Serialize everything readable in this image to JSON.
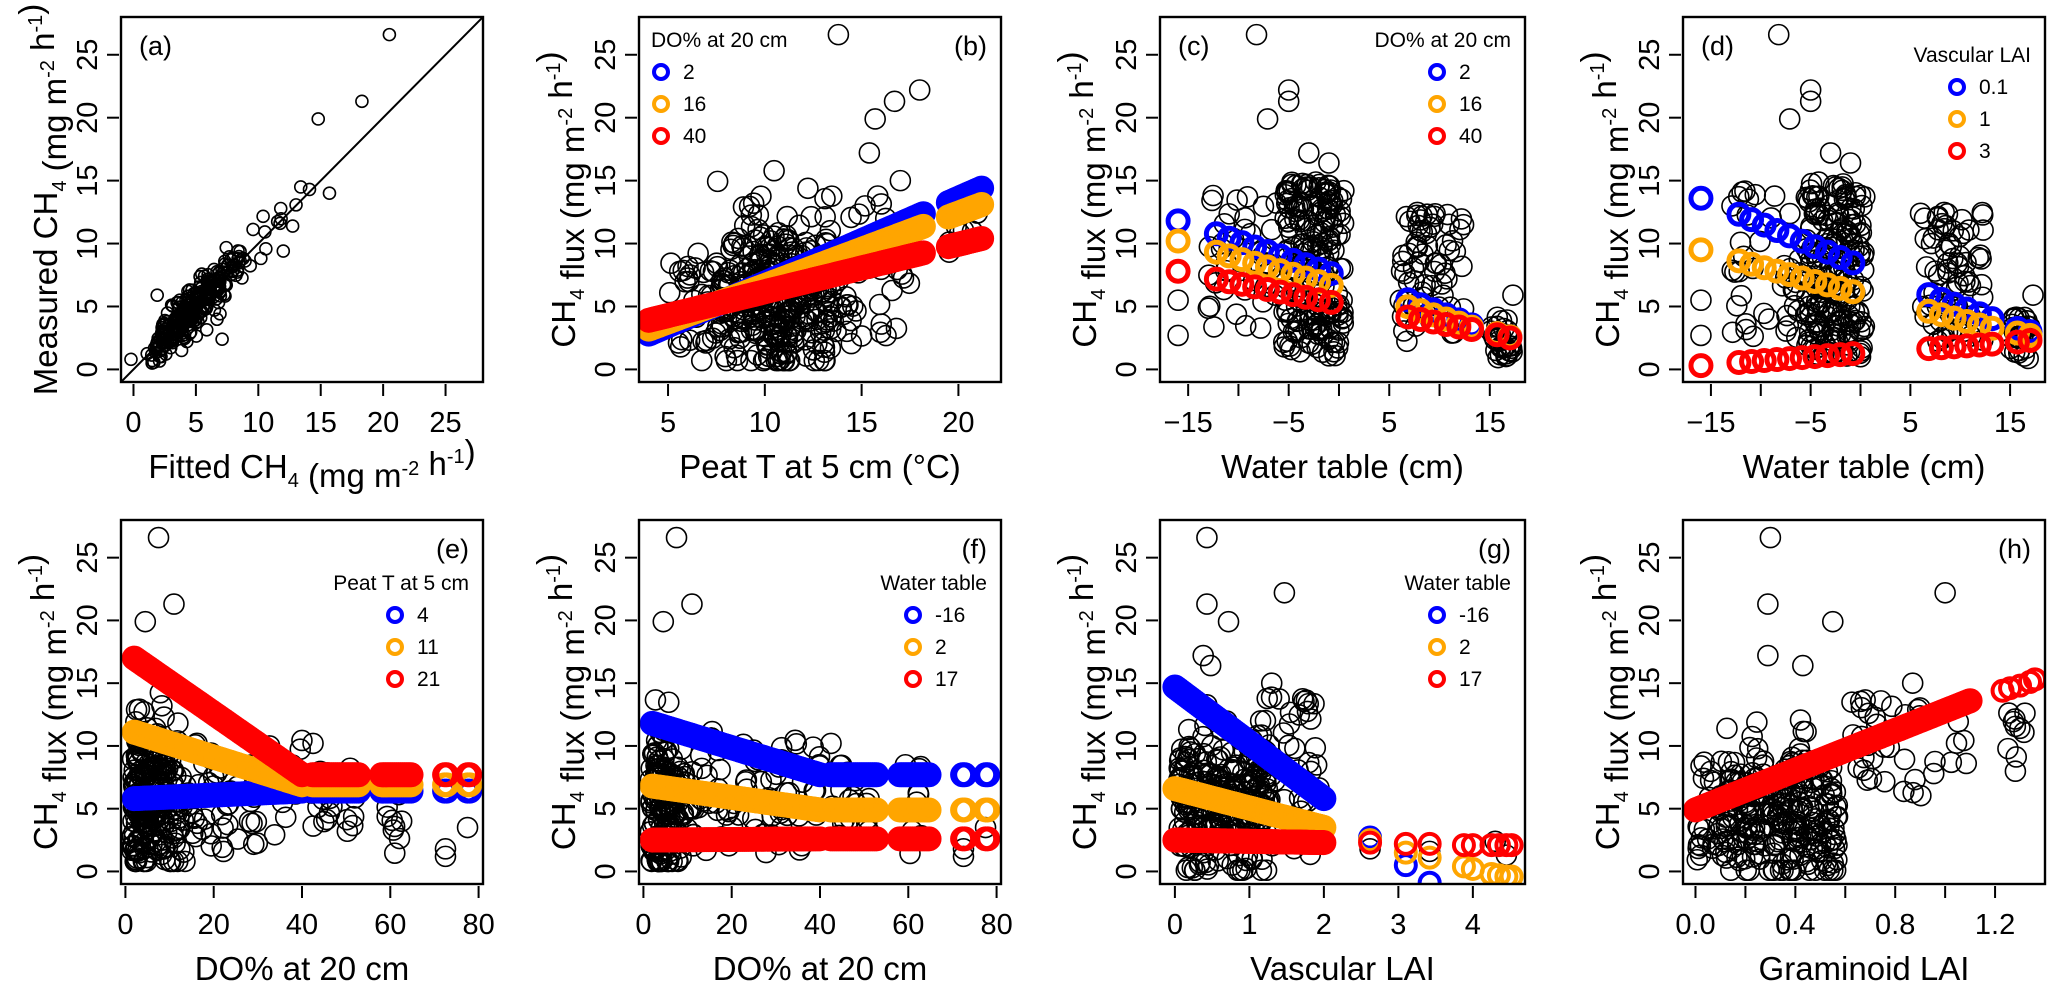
{
  "figure": {
    "colors": {
      "blue": "#0000FF",
      "orange": "#FFA500",
      "red": "#FF0000",
      "observed": "#000000"
    }
  },
  "chart_data": [
    {
      "id": "a",
      "type": "scatter",
      "tag": "(a)",
      "xlabel": "Fitted CH4 (mg m-2 h-1)",
      "xlabel_parts": {
        "main": "Fitted CH",
        "sub": "4",
        "unit": " (mg m",
        "sup1": "-2",
        "mid": " h",
        "sup2": "-1",
        "end": ")"
      },
      "ylabel_parts": {
        "main": "Measured CH",
        "sub": "4",
        "unit": " (mg m",
        "sup1": "-2",
        "mid": " h",
        "sup2": "-1",
        "end": ")"
      },
      "xlim": [
        -1,
        28
      ],
      "ylim": [
        -1,
        28
      ],
      "xticks": [
        0,
        5,
        10,
        15,
        20,
        25
      ],
      "xtick_labels": [
        "0",
        "5",
        "10",
        "15",
        "20",
        "25"
      ],
      "yticks": [
        0,
        5,
        10,
        15,
        20,
        25
      ],
      "ytick_labels": [
        "0",
        "5",
        "10",
        "15",
        "20",
        "25"
      ],
      "reference_line": "1:1",
      "highlight_points": [
        [
          20.5,
          26.6
        ],
        [
          18.3,
          21.3
        ],
        [
          14.8,
          19.9
        ],
        [
          15.7,
          14.0
        ],
        [
          13.4,
          14.5
        ],
        [
          14.1,
          14.3
        ],
        [
          12.0,
          9.4
        ],
        [
          7.1,
          2.4
        ],
        [
          1.9,
          5.9
        ],
        [
          -0.2,
          0.8
        ]
      ],
      "legend": null
    },
    {
      "id": "b",
      "type": "scatter",
      "tag": "(b)",
      "xlabel": "Peat T at 5 cm (°C)",
      "xlim": [
        3.5,
        22.2
      ],
      "ylim": [
        -1,
        28
      ],
      "xticks": [
        5,
        10,
        15,
        20
      ],
      "xtick_labels": [
        "5",
        "10",
        "15",
        "20"
      ],
      "yticks": [
        0,
        5,
        10,
        15,
        20,
        25
      ],
      "ytick_labels": [
        "0",
        "5",
        "10",
        "15",
        "20",
        "25"
      ],
      "legend": {
        "title": "DO% at 20 cm",
        "position": "top-left",
        "entries": [
          {
            "label": "2",
            "color": "blue"
          },
          {
            "label": "16",
            "color": "orange"
          },
          {
            "label": "40",
            "color": "red"
          }
        ]
      },
      "fitted_series": [
        {
          "name": "2",
          "color": "blue",
          "x_range": [
            4,
            21.2
          ],
          "y_range": [
            2.8,
            14.4
          ]
        },
        {
          "name": "16",
          "color": "orange",
          "x_range": [
            4,
            21.2
          ],
          "y_range": [
            3.2,
            13.1
          ]
        },
        {
          "name": "40",
          "color": "red",
          "x_range": [
            4,
            21.2
          ],
          "y_range": [
            3.9,
            10.4
          ]
        }
      ],
      "highlight_points": [
        [
          13.8,
          26.6
        ],
        [
          18.0,
          22.2
        ],
        [
          16.7,
          21.3
        ],
        [
          15.7,
          19.9
        ],
        [
          15.4,
          17.2
        ],
        [
          17.0,
          15.0
        ]
      ]
    },
    {
      "id": "c",
      "type": "scatter",
      "tag": "(c)",
      "xlabel": "Water table (cm)",
      "xlim": [
        -17.8,
        18.5
      ],
      "ylim": [
        -1,
        28
      ],
      "xticks": [
        -15,
        -10,
        -5,
        0,
        5,
        10,
        15
      ],
      "xtick_labels": [
        "−15",
        "",
        "−5",
        "",
        "5",
        "",
        "15"
      ],
      "yticks": [
        0,
        5,
        10,
        15,
        20,
        25
      ],
      "ytick_labels": [
        "0",
        "5",
        "10",
        "15",
        "20",
        "25"
      ],
      "legend": {
        "title": "DO% at 20 cm",
        "position": "top-right",
        "entries": [
          {
            "label": "2",
            "color": "blue"
          },
          {
            "label": "16",
            "color": "orange"
          },
          {
            "label": "40",
            "color": "red"
          }
        ]
      },
      "fitted_series": [
        {
          "name": "2",
          "color": "blue",
          "points": [
            [
              -16,
              11.8
            ],
            [
              -13,
              11.0
            ],
            [
              0,
              7.4
            ],
            [
              6,
              5.8
            ],
            [
              13,
              3.6
            ],
            [
              15,
              3.0
            ],
            [
              17,
              2.6
            ]
          ]
        },
        {
          "name": "16",
          "color": "orange",
          "points": [
            [
              -16,
              10.2
            ],
            [
              -13,
              9.5
            ],
            [
              0,
              6.5
            ],
            [
              6,
              5.2
            ],
            [
              13,
              3.4
            ],
            [
              15,
              3.0
            ],
            [
              17,
              2.6
            ]
          ]
        },
        {
          "name": "40",
          "color": "red",
          "points": [
            [
              -16,
              7.8
            ],
            [
              -13,
              7.3
            ],
            [
              0,
              5.2
            ],
            [
              6,
              4.3
            ],
            [
              13,
              3.2
            ],
            [
              15,
              2.9
            ],
            [
              17,
              2.5
            ]
          ]
        }
      ],
      "highlight_points": [
        [
          -8.2,
          26.6
        ],
        [
          -5.0,
          22.2
        ],
        [
          -5.0,
          21.3
        ],
        [
          -7.1,
          19.9
        ],
        [
          -3.0,
          17.2
        ],
        [
          -1.0,
          16.4
        ]
      ]
    },
    {
      "id": "d",
      "type": "scatter",
      "tag": "(d)",
      "xlabel": "Water table (cm)",
      "xlim": [
        -17.8,
        18.5
      ],
      "ylim": [
        -1,
        28
      ],
      "xticks": [
        -15,
        -10,
        -5,
        0,
        5,
        10,
        15
      ],
      "xtick_labels": [
        "−15",
        "",
        "−5",
        "",
        "5",
        "",
        "15"
      ],
      "yticks": [
        0,
        5,
        10,
        15,
        20,
        25
      ],
      "ytick_labels": [
        "0",
        "5",
        "10",
        "15",
        "20",
        "25"
      ],
      "legend": {
        "title": "Vascular LAI",
        "position": "top-right",
        "entries": [
          {
            "label": "0.1",
            "color": "blue"
          },
          {
            "label": "1",
            "color": "orange"
          },
          {
            "label": "3",
            "color": "red"
          }
        ]
      },
      "fitted_series": [
        {
          "name": "0.1",
          "color": "blue",
          "points": [
            [
              -16,
              13.6
            ],
            [
              -13,
              12.6
            ],
            [
              0,
              8.2
            ],
            [
              6,
              6.2
            ],
            [
              13,
              4.1
            ],
            [
              15,
              3.4
            ],
            [
              17,
              3.0
            ]
          ]
        },
        {
          "name": "1",
          "color": "orange",
          "points": [
            [
              -16,
              9.5
            ],
            [
              -13,
              8.8
            ],
            [
              0,
              6.0
            ],
            [
              6,
              4.8
            ],
            [
              13,
              3.3
            ],
            [
              15,
              3.0
            ],
            [
              17,
              2.7
            ]
          ]
        },
        {
          "name": "3",
          "color": "red",
          "points": [
            [
              -16,
              0.3
            ],
            [
              -13,
              0.5
            ],
            [
              0,
              1.3
            ],
            [
              6,
              1.6
            ],
            [
              13,
              2.0
            ],
            [
              15,
              2.1
            ],
            [
              17,
              2.3
            ]
          ]
        }
      ],
      "highlight_points": [
        [
          -8.2,
          26.6
        ],
        [
          -5.0,
          22.2
        ],
        [
          -5.0,
          21.3
        ],
        [
          -7.1,
          19.9
        ],
        [
          -3.0,
          17.2
        ],
        [
          -1.0,
          16.4
        ]
      ]
    },
    {
      "id": "e",
      "type": "scatter",
      "tag": "(e)",
      "xlabel": "DO% at 20 cm",
      "xlim": [
        -1,
        81
      ],
      "ylim": [
        -1,
        28
      ],
      "xticks": [
        0,
        20,
        40,
        60,
        80
      ],
      "xtick_labels": [
        "0",
        "20",
        "40",
        "60",
        "80"
      ],
      "yticks": [
        0,
        5,
        10,
        15,
        20,
        25
      ],
      "ytick_labels": [
        "0",
        "5",
        "10",
        "15",
        "20",
        "25"
      ],
      "legend": {
        "title": "Peat T at 5 cm",
        "position": "top-right",
        "entries": [
          {
            "label": "4",
            "color": "blue"
          },
          {
            "label": "11",
            "color": "orange"
          },
          {
            "label": "21",
            "color": "red"
          }
        ]
      },
      "fitted_series": [
        {
          "name": "4",
          "color": "blue",
          "points": [
            [
              2,
              5.8
            ],
            [
              40,
              6.4
            ],
            [
              78,
              6.4
            ]
          ]
        },
        {
          "name": "11",
          "color": "orange",
          "points": [
            [
              2,
              11.1
            ],
            [
              40,
              6.9
            ],
            [
              78,
              6.9
            ]
          ]
        },
        {
          "name": "21",
          "color": "red",
          "points": [
            [
              2,
              17.0
            ],
            [
              40,
              7.7
            ],
            [
              78,
              7.7
            ]
          ]
        }
      ],
      "highlight_points": [
        [
          7.5,
          26.6
        ],
        [
          11.0,
          21.3
        ],
        [
          4.5,
          19.9
        ],
        [
          42.5,
          10.2
        ],
        [
          77.5,
          3.5
        ]
      ]
    },
    {
      "id": "f",
      "type": "scatter",
      "tag": "(f)",
      "xlabel": "DO% at 20 cm",
      "xlim": [
        -1,
        81
      ],
      "ylim": [
        -1,
        28
      ],
      "xticks": [
        0,
        20,
        40,
        60,
        80
      ],
      "xtick_labels": [
        "0",
        "20",
        "40",
        "60",
        "80"
      ],
      "yticks": [
        0,
        5,
        10,
        15,
        20,
        25
      ],
      "ytick_labels": [
        "0",
        "5",
        "10",
        "15",
        "20",
        "25"
      ],
      "legend": {
        "title": "Water table",
        "position": "top-right",
        "entries": [
          {
            "label": "-16",
            "color": "blue"
          },
          {
            "label": "2",
            "color": "orange"
          },
          {
            "label": "17",
            "color": "red"
          }
        ]
      },
      "fitted_series": [
        {
          "name": "-16",
          "color": "blue",
          "points": [
            [
              2,
              11.8
            ],
            [
              40,
              7.7
            ],
            [
              78,
              7.7
            ]
          ]
        },
        {
          "name": "2",
          "color": "orange",
          "points": [
            [
              2,
              6.8
            ],
            [
              40,
              4.9
            ],
            [
              78,
              4.9
            ]
          ]
        },
        {
          "name": "17",
          "color": "red",
          "points": [
            [
              2,
              2.5
            ],
            [
              40,
              2.6
            ],
            [
              78,
              2.6
            ]
          ]
        }
      ],
      "highlight_points": [
        [
          7.5,
          26.6
        ],
        [
          11.0,
          21.3
        ],
        [
          4.5,
          19.9
        ],
        [
          42.5,
          10.2
        ],
        [
          77.5,
          3.5
        ]
      ]
    },
    {
      "id": "g",
      "type": "scatter",
      "tag": "(g)",
      "xlabel": "Vascular LAI",
      "xlim": [
        -0.2,
        4.7
      ],
      "ylim": [
        -1,
        28
      ],
      "xticks": [
        0,
        1,
        2,
        3,
        4
      ],
      "xtick_labels": [
        "0",
        "1",
        "2",
        "3",
        "4"
      ],
      "yticks": [
        0,
        5,
        10,
        15,
        20,
        25
      ],
      "ytick_labels": [
        "0",
        "5",
        "10",
        "15",
        "20",
        "25"
      ],
      "legend": {
        "title": "Water table",
        "position": "top-right",
        "entries": [
          {
            "label": "-16",
            "color": "blue"
          },
          {
            "label": "2",
            "color": "orange"
          },
          {
            "label": "17",
            "color": "red"
          }
        ]
      },
      "fitted_series": [
        {
          "name": "-16",
          "color": "blue",
          "points": [
            [
              0,
              14.7
            ],
            [
              2,
              5.8
            ]
          ],
          "extra": [
            [
              2.62,
              2.7
            ],
            [
              3.1,
              0.5
            ],
            [
              3.42,
              -0.9
            ]
          ]
        },
        {
          "name": "2",
          "color": "orange",
          "points": [
            [
              0,
              6.6
            ],
            [
              2,
              3.5
            ]
          ],
          "extra": [
            [
              2.62,
              2.5
            ],
            [
              3.1,
              1.5
            ],
            [
              3.42,
              1.1
            ],
            [
              3.88,
              0.4
            ],
            [
              4.0,
              0.2
            ],
            [
              4.25,
              -0.2
            ],
            [
              4.35,
              -0.3
            ],
            [
              4.45,
              -0.4
            ],
            [
              4.52,
              -0.4
            ]
          ]
        },
        {
          "name": "17",
          "color": "red",
          "points": [
            [
              0,
              2.5
            ],
            [
              2,
              2.3
            ]
          ],
          "extra": [
            [
              2.62,
              2.3
            ],
            [
              3.1,
              2.2
            ],
            [
              3.42,
              2.2
            ],
            [
              3.88,
              2.1
            ],
            [
              4.0,
              2.1
            ],
            [
              4.25,
              2.1
            ],
            [
              4.35,
              2.1
            ],
            [
              4.45,
              2.1
            ],
            [
              4.52,
              2.1
            ]
          ]
        }
      ],
      "highlight_points": [
        [
          0.43,
          26.6
        ],
        [
          1.47,
          22.2
        ],
        [
          0.43,
          21.3
        ],
        [
          0.72,
          19.9
        ],
        [
          0.38,
          17.2
        ],
        [
          0.48,
          16.4
        ],
        [
          1.3,
          15.0
        ]
      ]
    },
    {
      "id": "h",
      "type": "scatter",
      "tag": "(h)",
      "xlabel": "Graminoid LAI",
      "xlim": [
        -0.05,
        1.4
      ],
      "ylim": [
        -1,
        28
      ],
      "xticks": [
        0.0,
        0.2,
        0.4,
        0.6,
        0.8,
        1.0,
        1.2
      ],
      "xtick_labels": [
        "0.0",
        "",
        "0.4",
        "",
        "0.8",
        "",
        "1.2"
      ],
      "yticks": [
        0,
        5,
        10,
        15,
        20,
        25
      ],
      "ytick_labels": [
        "0",
        "5",
        "10",
        "15",
        "20",
        "25"
      ],
      "legend": null,
      "fitted_series": [
        {
          "name": "fit",
          "color": "red",
          "points": [
            [
              0.0,
              4.9
            ],
            [
              1.1,
              13.6
            ]
          ],
          "extra": [
            [
              1.23,
              14.4
            ],
            [
              1.26,
              14.6
            ],
            [
              1.3,
              14.8
            ],
            [
              1.34,
              15.1
            ],
            [
              1.36,
              15.3
            ]
          ]
        }
      ],
      "highlight_points": [
        [
          0.3,
          26.6
        ],
        [
          1.0,
          22.2
        ],
        [
          0.29,
          21.3
        ],
        [
          0.55,
          19.9
        ],
        [
          0.29,
          17.2
        ],
        [
          0.43,
          16.4
        ],
        [
          0.87,
          15.0
        ]
      ]
    }
  ],
  "ylabel_common": {
    "main": "CH",
    "sub": "4",
    "unit": " flux (mg m",
    "sup1": "-2",
    "mid": " h",
    "sup2": "-1",
    "end": ")"
  }
}
